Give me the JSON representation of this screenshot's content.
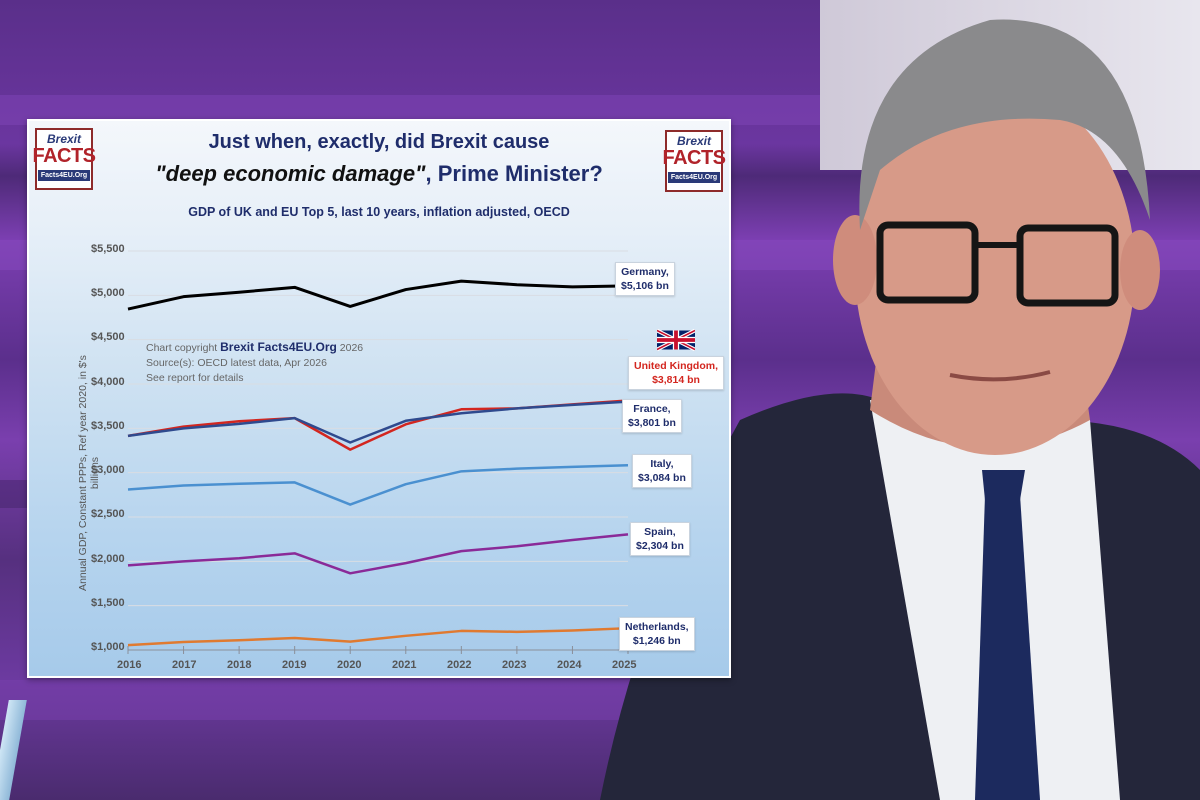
{
  "chart_card": {
    "title_line1": "Just when, exactly, did Brexit cause",
    "title_line2_quote": "\"deep economic damage\"",
    "title_line2_rest": ", Prime Minister?",
    "subtitle": "GDP of UK and EU Top 5, last 10 years, inflation adjusted, OECD",
    "logo": {
      "top": "Brexit",
      "middle": "FACTS",
      "bottom": "Facts4EU.Org"
    },
    "note": {
      "copyright_prefix": "Chart copyright",
      "copyright_brand": "Brexit Facts4EU.Org",
      "copyright_year": "2026",
      "source": "Source(s): OECD latest data, Apr 2026",
      "details": "See report for details"
    },
    "callouts": {
      "germany": [
        "Germany,",
        "$5,106 bn"
      ],
      "uk": [
        "United Kingdom,",
        "$3,814 bn"
      ],
      "france": [
        "France,",
        "$3,801 bn"
      ],
      "italy": [
        "Italy,",
        "$3,084 bn"
      ],
      "spain": [
        "Spain,",
        "$2,304 bn"
      ],
      "netherlands": [
        "Netherlands,",
        "$1,246 bn"
      ]
    }
  },
  "chart_data": {
    "type": "line",
    "title": "Just when, exactly, did Brexit cause \"deep economic damage\", Prime Minister?",
    "subtitle": "GDP of UK and EU Top 5, last 10 years, inflation adjusted, OECD",
    "xlabel": "",
    "ylabel": "Annual GDP, Constant PPPs, Ref year 2020, in $'s billions",
    "x": [
      "2016",
      "2017",
      "2018",
      "2019",
      "2020",
      "2021",
      "2022",
      "2023",
      "2024",
      "2025"
    ],
    "yticks": [
      "$1,000",
      "$1,500",
      "$2,000",
      "$2,500",
      "$3,000",
      "$3,500",
      "$4,000",
      "$4,500",
      "$5,000",
      "$5,500"
    ],
    "ylim": [
      1000,
      5500
    ],
    "grid": true,
    "legend": "direct labels at right",
    "series": [
      {
        "name": "Germany",
        "color": "#000000",
        "values": [
          4845,
          4985,
          5035,
          5090,
          4875,
          5065,
          5160,
          5120,
          5095,
          5106
        ],
        "label": "Germany, $5,106 bn"
      },
      {
        "name": "United Kingdom",
        "color": "#d3261f",
        "values": [
          3415,
          3520,
          3580,
          3615,
          3260,
          3545,
          3715,
          3725,
          3770,
          3814
        ],
        "label": "United Kingdom, $3,814 bn"
      },
      {
        "name": "France",
        "color": "#2f4a8e",
        "values": [
          3415,
          3500,
          3550,
          3615,
          3340,
          3585,
          3670,
          3725,
          3765,
          3801
        ],
        "label": "France, $3,801 bn"
      },
      {
        "name": "Italy",
        "color": "#4a90d0",
        "values": [
          2810,
          2855,
          2875,
          2890,
          2640,
          2870,
          3015,
          3045,
          3065,
          3084
        ],
        "label": "Italy, $3,084 bn"
      },
      {
        "name": "Spain",
        "color": "#8a2a98",
        "values": [
          1955,
          2000,
          2035,
          2090,
          1865,
          1980,
          2115,
          2170,
          2240,
          2304
        ],
        "label": "Spain, $2,304 bn"
      },
      {
        "name": "Netherlands",
        "color": "#e07a30",
        "values": [
          1055,
          1090,
          1110,
          1135,
          1095,
          1160,
          1215,
          1205,
          1220,
          1246
        ],
        "label": "Netherlands, $1,246 bn"
      }
    ],
    "annotations": [
      "Chart copyright Brexit Facts4EU.Org 2026",
      "Source(s): OECD latest data, Apr 2026",
      "See report for details"
    ]
  }
}
